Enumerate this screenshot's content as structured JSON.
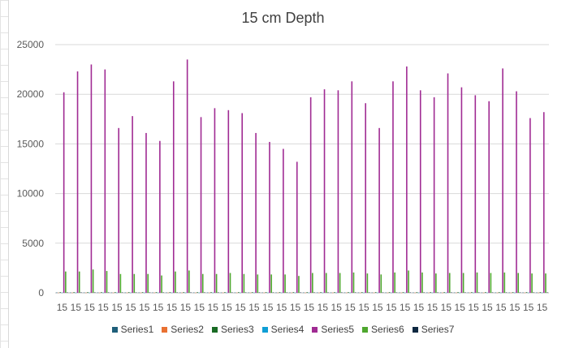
{
  "chart_data": {
    "type": "bar",
    "title": "15 cm Depth",
    "xlabel": "",
    "ylabel": "",
    "ylim": [
      0,
      25000
    ],
    "yticks": [
      0,
      5000,
      10000,
      15000,
      20000,
      25000
    ],
    "grid": true,
    "legend_position": "bottom",
    "categories": [
      "15",
      "15",
      "15",
      "15",
      "15",
      "15",
      "15",
      "15",
      "15",
      "15",
      "15",
      "15",
      "15",
      "15",
      "15",
      "15",
      "15",
      "15",
      "15",
      "15",
      "15",
      "15",
      "15",
      "15",
      "15",
      "15",
      "15",
      "15",
      "15",
      "15",
      "15",
      "15",
      "15",
      "15",
      "15",
      "15"
    ],
    "series": [
      {
        "name": "Series1",
        "color": "#1f5f7a",
        "values": [
          30,
          30,
          30,
          30,
          30,
          30,
          30,
          30,
          30,
          30,
          30,
          30,
          30,
          30,
          30,
          30,
          30,
          30,
          30,
          30,
          30,
          30,
          30,
          30,
          30,
          30,
          30,
          30,
          30,
          30,
          30,
          30,
          30,
          30,
          30,
          30
        ]
      },
      {
        "name": "Series2",
        "color": "#e97132",
        "values": [
          20,
          20,
          20,
          20,
          20,
          20,
          20,
          20,
          20,
          20,
          20,
          20,
          20,
          20,
          20,
          20,
          20,
          20,
          20,
          20,
          20,
          20,
          20,
          20,
          20,
          20,
          20,
          20,
          20,
          20,
          20,
          20,
          20,
          20,
          20,
          20
        ]
      },
      {
        "name": "Series3",
        "color": "#196b24",
        "values": [
          60,
          60,
          60,
          60,
          60,
          60,
          60,
          60,
          60,
          60,
          60,
          60,
          60,
          60,
          60,
          60,
          60,
          60,
          60,
          60,
          60,
          60,
          60,
          60,
          60,
          60,
          60,
          60,
          60,
          60,
          60,
          60,
          60,
          60,
          60,
          60
        ]
      },
      {
        "name": "Series4",
        "color": "#0f9ed5",
        "values": [
          20,
          20,
          20,
          20,
          20,
          20,
          20,
          20,
          20,
          20,
          20,
          20,
          20,
          20,
          20,
          20,
          20,
          20,
          20,
          20,
          20,
          20,
          20,
          20,
          20,
          20,
          20,
          20,
          20,
          20,
          20,
          20,
          20,
          20,
          20,
          20
        ]
      },
      {
        "name": "Series5",
        "color": "#a02b93",
        "values": [
          20200,
          22300,
          23000,
          22500,
          16600,
          17800,
          16100,
          15300,
          21300,
          23500,
          17700,
          18600,
          18400,
          18100,
          16100,
          15200,
          14500,
          13200,
          19700,
          20500,
          20400,
          21300,
          19100,
          16600,
          21300,
          22800,
          20400,
          19700,
          22100,
          20700,
          19900,
          19300,
          22600,
          20300,
          17600,
          18200
        ]
      },
      {
        "name": "Series6",
        "color": "#4ea72e",
        "values": [
          2150,
          2150,
          2350,
          2200,
          1900,
          1900,
          1900,
          1750,
          2150,
          2250,
          1900,
          1900,
          2000,
          1900,
          1850,
          1850,
          1850,
          1700,
          2000,
          2000,
          2000,
          2050,
          1950,
          1850,
          2050,
          2250,
          2050,
          1950,
          2000,
          2000,
          2050,
          2000,
          2050,
          2000,
          1950,
          1950
        ]
      },
      {
        "name": "Series7",
        "color": "#0e2841",
        "values": [
          40,
          40,
          40,
          40,
          40,
          40,
          40,
          40,
          40,
          40,
          40,
          40,
          40,
          40,
          40,
          40,
          40,
          40,
          40,
          40,
          40,
          40,
          40,
          40,
          40,
          40,
          40,
          40,
          40,
          40,
          40,
          40,
          40,
          40,
          40,
          40
        ]
      }
    ]
  }
}
